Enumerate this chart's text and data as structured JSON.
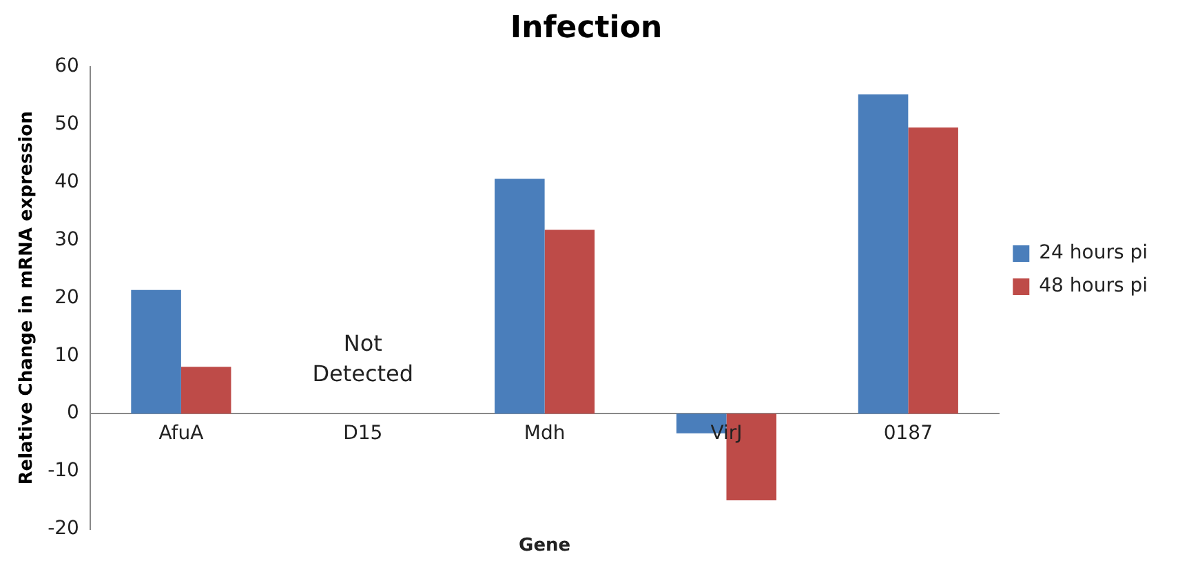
{
  "chart_data": {
    "type": "bar",
    "title": "Infection",
    "xlabel": "Gene",
    "ylabel": "Relative Change in mRNA expression",
    "categories": [
      "AfuA",
      "D15",
      "Mdh",
      "VirJ",
      "0187"
    ],
    "series": [
      {
        "name": "24 hours pi",
        "color": "#4a7ebb",
        "values": [
          21.4,
          null,
          40.6,
          -3.4,
          55.2
        ]
      },
      {
        "name": "48 hours pi",
        "color": "#be4b48",
        "values": [
          8.1,
          null,
          31.8,
          -15,
          49.5
        ]
      }
    ],
    "ylim": [
      -20,
      60
    ],
    "yticks": [
      -20,
      -10,
      0,
      10,
      20,
      30,
      40,
      50,
      60
    ],
    "grid": false,
    "legend": "right",
    "annotations": [
      "Not Detected"
    ]
  }
}
